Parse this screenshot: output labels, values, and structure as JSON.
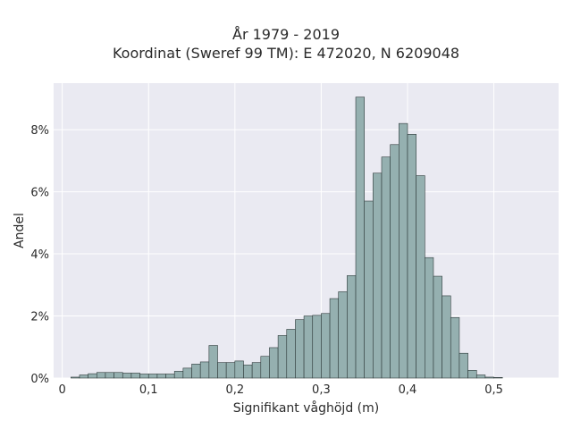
{
  "chart_data": {
    "type": "bar",
    "title": "År 1979 - 2019",
    "subtitle": "Koordinat (Sweref 99 TM): E 472020, N 6209048",
    "xlabel": "Signifikant våghöjd (m)",
    "ylabel": "Andel",
    "xlim": [
      -0.01,
      0.575
    ],
    "ylim": [
      0,
      0.095
    ],
    "x_ticks": [
      0,
      0.1,
      0.2,
      0.3,
      0.4,
      0.5
    ],
    "x_tick_labels": [
      "0",
      "0,1",
      "0,2",
      "0,3",
      "0,4",
      "0,5"
    ],
    "y_ticks": [
      0,
      0.02,
      0.04,
      0.06,
      0.08
    ],
    "y_tick_labels": [
      "0%",
      "2%",
      "4%",
      "6%",
      "8%"
    ],
    "grid": true,
    "bin_start": 0.01,
    "bin_width": 0.01,
    "values": [
      0.0003,
      0.001,
      0.0014,
      0.0018,
      0.0018,
      0.0018,
      0.0016,
      0.0016,
      0.0013,
      0.0013,
      0.0013,
      0.0013,
      0.0022,
      0.0032,
      0.0045,
      0.0052,
      0.0105,
      0.005,
      0.005,
      0.0055,
      0.0042,
      0.005,
      0.007,
      0.0098,
      0.0137,
      0.0157,
      0.0188,
      0.02,
      0.0202,
      0.0208,
      0.0256,
      0.0278,
      0.033,
      0.0905,
      0.057,
      0.066,
      0.0712,
      0.0752,
      0.082,
      0.0785,
      0.0652,
      0.0388,
      0.0328,
      0.0265,
      0.0195,
      0.008,
      0.0025,
      0.001,
      0.0003,
      0.0002
    ],
    "colors": {
      "bar_fill": "#95b0b0",
      "bar_stroke": "#2e3a3a",
      "plot_bg": "#eaeaf2",
      "grid": "#ffffff"
    }
  }
}
